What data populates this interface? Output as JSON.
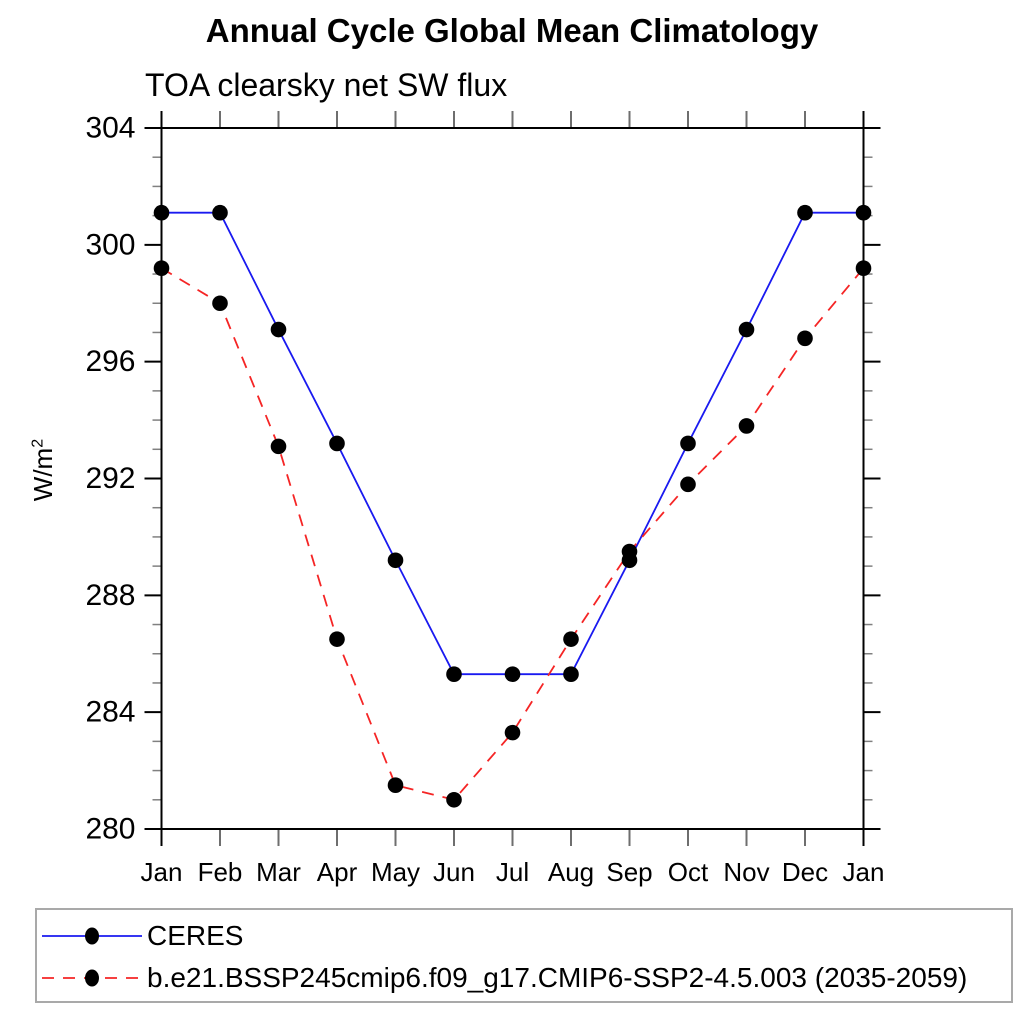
{
  "chart_data": {
    "type": "line",
    "title": "Annual Cycle Global Mean Climatology",
    "subtitle": "TOA clearsky net SW flux",
    "ylabel_base": "W/m",
    "ylabel_exponent": "2",
    "categories": [
      "Jan",
      "Feb",
      "Mar",
      "Apr",
      "May",
      "Jun",
      "Jul",
      "Aug",
      "Sep",
      "Oct",
      "Nov",
      "Dec",
      "Jan"
    ],
    "ylim": [
      280,
      304
    ],
    "ytick_major_step": 4,
    "ytick_minor_step": 1,
    "grid": false,
    "legend_position": "bottom-box",
    "series": [
      {
        "id": "ceres",
        "name": "CERES",
        "color": "#1a1af0",
        "line_style": "solid",
        "dash": "none",
        "marker": "filled-circle",
        "marker_color": "#000000",
        "values": [
          301.1,
          301.1,
          297.1,
          293.2,
          289.2,
          285.3,
          285.3,
          285.3,
          289.2,
          293.2,
          297.1,
          301.1,
          301.1
        ]
      },
      {
        "id": "model",
        "name": "b.e21.BSSP245cmip6.f09_g17.CMIP6-SSP2-4.5.003 (2035-2059)",
        "color": "#f52525",
        "line_style": "dashed",
        "dash": "12 9",
        "marker": "filled-circle",
        "marker_color": "#000000",
        "values": [
          299.2,
          298.0,
          293.1,
          286.5,
          281.5,
          281.0,
          283.3,
          286.5,
          289.5,
          291.8,
          293.8,
          296.8,
          299.2
        ]
      }
    ]
  }
}
